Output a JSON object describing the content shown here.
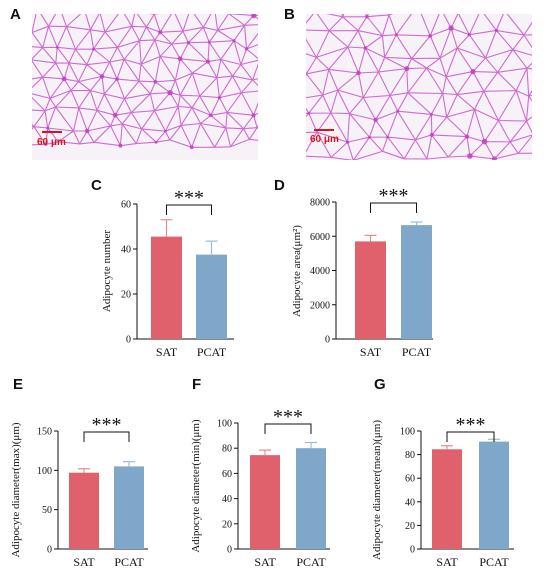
{
  "panels": {
    "A": "A",
    "B": "B",
    "C": "C",
    "D": "D",
    "E": "E",
    "F": "F",
    "G": "G"
  },
  "micrographs": [
    {
      "panel": "A",
      "scale_label": "60 μm"
    },
    {
      "panel": "B",
      "scale_label": "60 μm"
    }
  ],
  "colors": {
    "sat": "#e0606b",
    "pcat": "#7fa7c9",
    "sat_error": "#e88a92",
    "pcat_error": "#9bbcd8",
    "scale": "#d4161c",
    "stain": "#c13fc4"
  },
  "chart_data": [
    {
      "panel": "C",
      "type": "bar",
      "categories": [
        "SAT",
        "PCAT"
      ],
      "values": [
        45.5,
        37.5
      ],
      "errors": [
        7.5,
        6.0
      ],
      "ylabel": "Adipocyte  number",
      "ylim": [
        0,
        60
      ],
      "yticks": [
        0,
        20,
        40,
        60
      ],
      "significance": "***"
    },
    {
      "panel": "D",
      "type": "bar",
      "categories": [
        "SAT",
        "PCAT"
      ],
      "values": [
        5700,
        6650
      ],
      "errors": [
        350,
        180
      ],
      "ylabel": "Adipocyte area(μm²)",
      "ylim": [
        0,
        8000
      ],
      "yticks": [
        0,
        2000,
        4000,
        6000,
        8000
      ],
      "significance": "***"
    },
    {
      "panel": "E",
      "type": "bar",
      "categories": [
        "SAT",
        "PCAT"
      ],
      "values": [
        97,
        105
      ],
      "errors": [
        5,
        6
      ],
      "ylabel": "Adipocyte diameter(max)(μm)",
      "ylim": [
        0,
        150
      ],
      "yticks": [
        0,
        50,
        100,
        150
      ],
      "significance": "***"
    },
    {
      "panel": "F",
      "type": "bar",
      "categories": [
        "SAT",
        "PCAT"
      ],
      "values": [
        74.5,
        80
      ],
      "errors": [
        4,
        4.5
      ],
      "ylabel": "Adipocyte diameter(min)(μm)",
      "ylim": [
        0,
        100
      ],
      "yticks": [
        0,
        20,
        40,
        60,
        80,
        100
      ],
      "significance": "***"
    },
    {
      "panel": "G",
      "type": "bar",
      "categories": [
        "SAT",
        "PCAT"
      ],
      "values": [
        84.5,
        91
      ],
      "errors": [
        3,
        2
      ],
      "ylabel": "Adipocyte diameter(mean)(μm)",
      "ylim": [
        0,
        100
      ],
      "yticks": [
        0,
        20,
        40,
        60,
        80,
        100
      ],
      "significance": "***"
    }
  ]
}
